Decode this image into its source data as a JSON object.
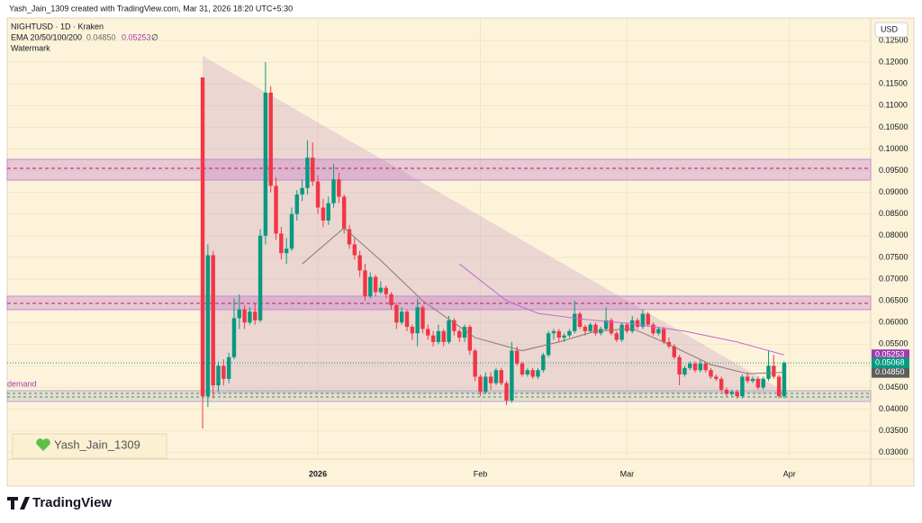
{
  "chart_data": {
    "type": "candlestick",
    "subtitle": "Yash_Jain_1309 created with TradingView.com, Mar 31, 2026 18:20 UTC+5:30",
    "title": "NIGHTUSD · 1D · Kraken",
    "currency": "USD",
    "annotations": [
      "Watermark",
      "demand",
      "Yash_Jain_1309"
    ],
    "brand": "TradingView",
    "up_color": "#089981",
    "down_color": "#f23645",
    "grid": true,
    "xlim": [
      -37.3,
      127.5
    ],
    "xticks": [
      {
        "value": 22,
        "label": "2026"
      },
      {
        "value": 53,
        "label": "Feb"
      },
      {
        "value": 81,
        "label": "Mar"
      },
      {
        "value": 112,
        "label": "Apr"
      }
    ],
    "ylim": [
      0.0285,
      0.1302
    ],
    "yticks": [
      {
        "value": 0.125,
        "label": "0.12500"
      },
      {
        "value": 0.12,
        "label": "0.12000"
      },
      {
        "value": 0.115,
        "label": "0.11500"
      },
      {
        "value": 0.11,
        "label": "0.11000"
      },
      {
        "value": 0.105,
        "label": "0.10500"
      },
      {
        "value": 0.1,
        "label": "0.10000"
      },
      {
        "value": 0.095,
        "label": "0.09500"
      },
      {
        "value": 0.09,
        "label": "0.09000"
      },
      {
        "value": 0.085,
        "label": "0.08500"
      },
      {
        "value": 0.08,
        "label": "0.08000"
      },
      {
        "value": 0.075,
        "label": "0.07500"
      },
      {
        "value": 0.07,
        "label": "0.07000"
      },
      {
        "value": 0.065,
        "label": "0.06500"
      },
      {
        "value": 0.06,
        "label": "0.06000"
      },
      {
        "value": 0.055,
        "label": "0.05500"
      },
      {
        "value": 0.05,
        "label": "0.05000"
      },
      {
        "value": 0.045,
        "label": "0.04500"
      },
      {
        "value": 0.04,
        "label": "0.04000"
      },
      {
        "value": 0.035,
        "label": "0.03500"
      },
      {
        "value": 0.03,
        "label": "0.03000"
      }
    ],
    "ohlc": [
      [
        0.1165,
        0.1165,
        0.0355,
        0.043
      ],
      [
        0.043,
        0.078,
        0.0405,
        0.0755
      ],
      [
        0.0755,
        0.0765,
        0.0425,
        0.0455
      ],
      [
        0.0455,
        0.051,
        0.044,
        0.05
      ],
      [
        0.05,
        0.0515,
        0.0455,
        0.047
      ],
      [
        0.047,
        0.053,
        0.046,
        0.052
      ],
      [
        0.052,
        0.0655,
        0.0515,
        0.061
      ],
      [
        0.061,
        0.0665,
        0.0585,
        0.063
      ],
      [
        0.063,
        0.064,
        0.0585,
        0.06
      ],
      [
        0.06,
        0.0635,
        0.0595,
        0.0625
      ],
      [
        0.0625,
        0.0645,
        0.0595,
        0.0605
      ],
      [
        0.0605,
        0.0815,
        0.06,
        0.08
      ],
      [
        0.08,
        0.12,
        0.078,
        0.113
      ],
      [
        0.113,
        0.1145,
        0.09,
        0.0915
      ],
      [
        0.0915,
        0.0935,
        0.079,
        0.0805
      ],
      [
        0.0805,
        0.082,
        0.0745,
        0.076
      ],
      [
        0.076,
        0.0795,
        0.0735,
        0.077
      ],
      [
        0.077,
        0.0865,
        0.0765,
        0.085
      ],
      [
        0.085,
        0.0905,
        0.0835,
        0.0895
      ],
      [
        0.0895,
        0.093,
        0.088,
        0.091
      ],
      [
        0.091,
        0.102,
        0.0895,
        0.098
      ],
      [
        0.098,
        0.1015,
        0.0915,
        0.0925
      ],
      [
        0.0925,
        0.094,
        0.085,
        0.0865
      ],
      [
        0.0865,
        0.0885,
        0.082,
        0.0835
      ],
      [
        0.0835,
        0.089,
        0.0825,
        0.0875
      ],
      [
        0.0875,
        0.0965,
        0.0865,
        0.093
      ],
      [
        0.093,
        0.0945,
        0.0875,
        0.089
      ],
      [
        0.089,
        0.0895,
        0.0805,
        0.0815
      ],
      [
        0.0815,
        0.0825,
        0.077,
        0.078
      ],
      [
        0.078,
        0.0795,
        0.0745,
        0.0755
      ],
      [
        0.0755,
        0.0765,
        0.0705,
        0.072
      ],
      [
        0.072,
        0.0735,
        0.065,
        0.066
      ],
      [
        0.066,
        0.0715,
        0.0655,
        0.0705
      ],
      [
        0.0705,
        0.071,
        0.066,
        0.067
      ],
      [
        0.067,
        0.0695,
        0.0665,
        0.068
      ],
      [
        0.068,
        0.0685,
        0.0655,
        0.0665
      ],
      [
        0.0665,
        0.067,
        0.063,
        0.064
      ],
      [
        0.064,
        0.0645,
        0.0585,
        0.06
      ],
      [
        0.06,
        0.0635,
        0.0595,
        0.0625
      ],
      [
        0.0625,
        0.063,
        0.058,
        0.059
      ],
      [
        0.059,
        0.0595,
        0.056,
        0.0575
      ],
      [
        0.0575,
        0.0655,
        0.0545,
        0.0635
      ],
      [
        0.0635,
        0.064,
        0.0575,
        0.0585
      ],
      [
        0.0585,
        0.0595,
        0.056,
        0.057
      ],
      [
        0.057,
        0.058,
        0.0545,
        0.0555
      ],
      [
        0.0555,
        0.0595,
        0.055,
        0.058
      ],
      [
        0.058,
        0.0585,
        0.0545,
        0.0555
      ],
      [
        0.0555,
        0.0615,
        0.055,
        0.0605
      ],
      [
        0.0605,
        0.061,
        0.057,
        0.058
      ],
      [
        0.058,
        0.0585,
        0.0555,
        0.0565
      ],
      [
        0.0565,
        0.0595,
        0.0555,
        0.059
      ],
      [
        0.059,
        0.0595,
        0.0525,
        0.0535
      ],
      [
        0.0535,
        0.054,
        0.0465,
        0.0475
      ],
      [
        0.0475,
        0.048,
        0.043,
        0.044
      ],
      [
        0.044,
        0.0485,
        0.0435,
        0.0475
      ],
      [
        0.0475,
        0.0485,
        0.0445,
        0.046
      ],
      [
        0.046,
        0.0495,
        0.0455,
        0.049
      ],
      [
        0.049,
        0.0495,
        0.0455,
        0.046
      ],
      [
        0.046,
        0.0465,
        0.041,
        0.042
      ],
      [
        0.042,
        0.0555,
        0.0415,
        0.0535
      ],
      [
        0.0535,
        0.0545,
        0.05,
        0.0505
      ],
      [
        0.0505,
        0.051,
        0.0475,
        0.048
      ],
      [
        0.048,
        0.0495,
        0.0475,
        0.049
      ],
      [
        0.049,
        0.0495,
        0.047,
        0.0475
      ],
      [
        0.0475,
        0.0495,
        0.047,
        0.049
      ],
      [
        0.049,
        0.053,
        0.0485,
        0.0525
      ],
      [
        0.0525,
        0.058,
        0.052,
        0.0575
      ],
      [
        0.0575,
        0.0585,
        0.056,
        0.058
      ],
      [
        0.058,
        0.0585,
        0.0555,
        0.0565
      ],
      [
        0.0565,
        0.0575,
        0.0555,
        0.057
      ],
      [
        0.057,
        0.0585,
        0.0565,
        0.058
      ],
      [
        0.058,
        0.065,
        0.0575,
        0.062
      ],
      [
        0.062,
        0.0625,
        0.0585,
        0.059
      ],
      [
        0.059,
        0.0595,
        0.057,
        0.058
      ],
      [
        0.058,
        0.06,
        0.0575,
        0.0595
      ],
      [
        0.0595,
        0.06,
        0.057,
        0.0575
      ],
      [
        0.0575,
        0.059,
        0.057,
        0.0585
      ],
      [
        0.0585,
        0.0635,
        0.058,
        0.0605
      ],
      [
        0.0605,
        0.061,
        0.057,
        0.0575
      ],
      [
        0.0575,
        0.058,
        0.0555,
        0.056
      ],
      [
        0.056,
        0.06,
        0.0555,
        0.0595
      ],
      [
        0.0595,
        0.06,
        0.0575,
        0.058
      ],
      [
        0.058,
        0.0615,
        0.0575,
        0.0605
      ],
      [
        0.0605,
        0.061,
        0.0585,
        0.059
      ],
      [
        0.059,
        0.063,
        0.0585,
        0.062
      ],
      [
        0.062,
        0.0625,
        0.059,
        0.0595
      ],
      [
        0.0595,
        0.06,
        0.057,
        0.0575
      ],
      [
        0.0575,
        0.059,
        0.057,
        0.0585
      ],
      [
        0.0585,
        0.059,
        0.055,
        0.0555
      ],
      [
        0.0555,
        0.0565,
        0.054,
        0.0545
      ],
      [
        0.0545,
        0.055,
        0.0515,
        0.052
      ],
      [
        0.052,
        0.0525,
        0.0455,
        0.048
      ],
      [
        0.048,
        0.05,
        0.0475,
        0.0495
      ],
      [
        0.0495,
        0.051,
        0.049,
        0.0505
      ],
      [
        0.0505,
        0.051,
        0.0485,
        0.049
      ],
      [
        0.049,
        0.0515,
        0.0485,
        0.0505
      ],
      [
        0.0505,
        0.051,
        0.0485,
        0.049
      ],
      [
        0.049,
        0.0495,
        0.047,
        0.0475
      ],
      [
        0.0475,
        0.048,
        0.0465,
        0.047
      ],
      [
        0.047,
        0.0475,
        0.044,
        0.0445
      ],
      [
        0.0445,
        0.045,
        0.043,
        0.0435
      ],
      [
        0.0435,
        0.0445,
        0.043,
        0.044
      ],
      [
        0.044,
        0.0445,
        0.0425,
        0.043
      ],
      [
        0.043,
        0.048,
        0.0425,
        0.0475
      ],
      [
        0.0475,
        0.0485,
        0.046,
        0.0465
      ],
      [
        0.0465,
        0.0475,
        0.046,
        0.047
      ],
      [
        0.047,
        0.0475,
        0.0445,
        0.045
      ],
      [
        0.045,
        0.0475,
        0.0445,
        0.047
      ],
      [
        0.047,
        0.0535,
        0.0465,
        0.05
      ],
      [
        0.05,
        0.0525,
        0.047,
        0.0475
      ],
      [
        0.0475,
        0.048,
        0.0425,
        0.043
      ],
      [
        0.043,
        0.051,
        0.0425,
        0.05068
      ]
    ],
    "last_price": {
      "value": 0.05068,
      "label": "0.05068"
    },
    "indicator": {
      "name": "EMA 20/50/100/200",
      "symbol": "∅",
      "series": [
        {
          "color": "#8a7a70",
          "x": [
            19,
            27,
            34,
            42,
            52,
            61,
            68,
            75,
            82,
            88,
            97,
            104,
            111
          ],
          "values": [
            0.0735,
            0.0818,
            0.0743,
            0.065,
            0.0565,
            0.0535,
            0.0555,
            0.058,
            0.0586,
            0.0555,
            0.0503,
            0.0482,
            0.0485
          ],
          "last": {
            "value": 0.0485,
            "label": "0.04850"
          },
          "tag_color": "#5d5d5d"
        },
        {
          "color": "#c36ad1",
          "x": [
            49,
            58,
            64,
            73,
            82,
            92,
            102,
            111
          ],
          "values": [
            0.0735,
            0.065,
            0.0621,
            0.0607,
            0.0597,
            0.058,
            0.0555,
            0.05253
          ],
          "last": {
            "value": 0.05253,
            "label": "0.05253"
          },
          "tag_color": "#a03bb0"
        }
      ]
    }
  }
}
